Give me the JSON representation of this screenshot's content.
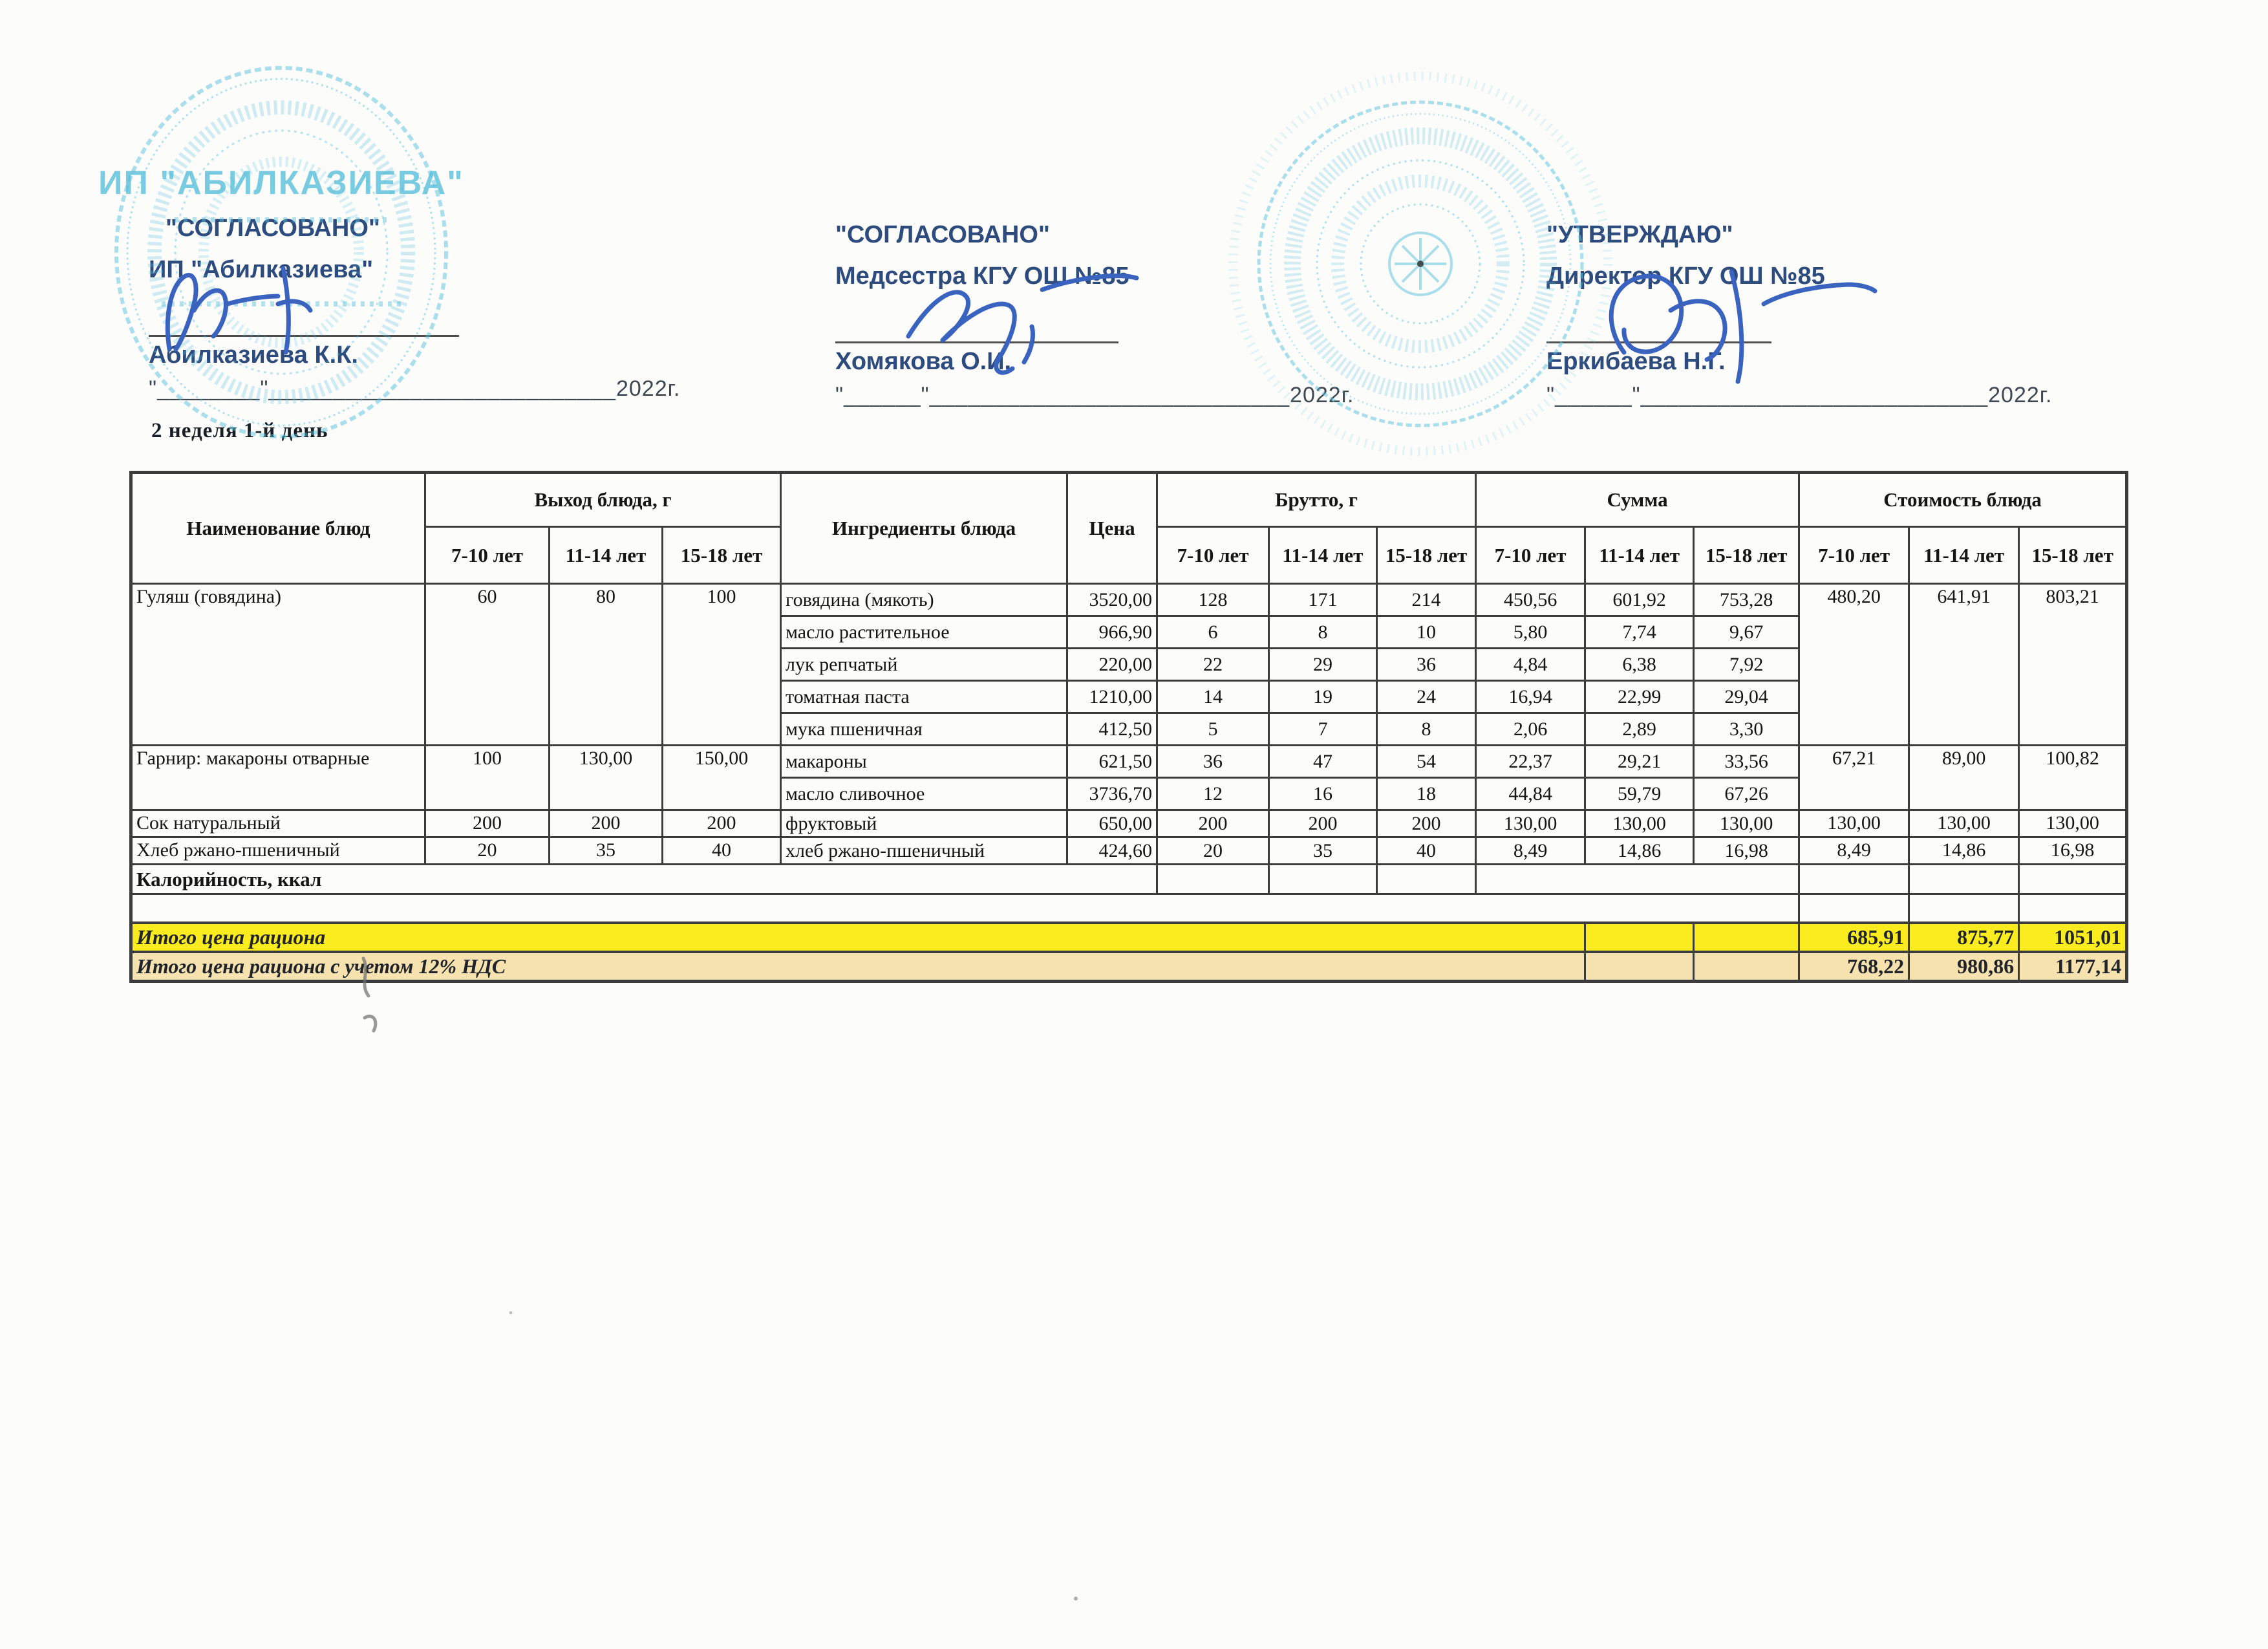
{
  "approvals": [
    {
      "title": "\"СОГЛАСОВАНО\"",
      "subtitle": "ИП \"Абилказиева\"",
      "name": "Абилказиева К.К.",
      "date_line": "\"________\"___________________________2022г."
    },
    {
      "title": "\"СОГЛАСОВАНО\"",
      "subtitle": "Медсестра КГУ ОШ №85",
      "name": "Хомякова О.И.",
      "date_line": "\"______\"____________________________2022г."
    },
    {
      "title": "\"УТВЕРЖДАЮ\"",
      "subtitle": "Директор КГУ ОШ №85",
      "name": "Еркибаева Н.Г.",
      "date_line": "\"______\"___________________________2022г."
    }
  ],
  "week_label": "2 неделя 1-й день",
  "stamps": {
    "left_text": "ИП \"АБИЛКАЗИЕВА\""
  },
  "table": {
    "headers": {
      "dish": "Наименование блюд",
      "output": "Выход блюда, г",
      "ingredients": "Ингредиенты блюда",
      "price": "Цена",
      "brutto": "Брутто, г",
      "sum": "Сумма",
      "cost": "Стоимость блюда",
      "ages": [
        "7-10 лет",
        "11-14 лет",
        "15-18 лет"
      ]
    },
    "dishes": [
      {
        "name": "Гуляш (говядина)",
        "output": [
          "60",
          "80",
          "100"
        ],
        "cost": [
          "480,20",
          "641,91",
          "803,21"
        ],
        "ingredients": [
          {
            "name": "говядина (мякоть)",
            "price": "3520,00",
            "brutto": [
              "128",
              "171",
              "214"
            ],
            "sum": [
              "450,56",
              "601,92",
              "753,28"
            ]
          },
          {
            "name": "масло растительное",
            "price": "966,90",
            "brutto": [
              "6",
              "8",
              "10"
            ],
            "sum": [
              "5,80",
              "7,74",
              "9,67"
            ]
          },
          {
            "name": "лук репчатый",
            "price": "220,00",
            "brutto": [
              "22",
              "29",
              "36"
            ],
            "sum": [
              "4,84",
              "6,38",
              "7,92"
            ]
          },
          {
            "name": "томатная паста",
            "price": "1210,00",
            "brutto": [
              "14",
              "19",
              "24"
            ],
            "sum": [
              "16,94",
              "22,99",
              "29,04"
            ]
          },
          {
            "name": "мука пшеничная",
            "price": "412,50",
            "brutto": [
              "5",
              "7",
              "8"
            ],
            "sum": [
              "2,06",
              "2,89",
              "3,30"
            ]
          }
        ]
      },
      {
        "name": "Гарнир: макароны отварные",
        "output": [
          "100",
          "130,00",
          "150,00"
        ],
        "cost": [
          "67,21",
          "89,00",
          "100,82"
        ],
        "ingredients": [
          {
            "name": "макароны",
            "price": "621,50",
            "brutto": [
              "36",
              "47",
              "54"
            ],
            "sum": [
              "22,37",
              "29,21",
              "33,56"
            ]
          },
          {
            "name": "масло сливочное",
            "price": "3736,70",
            "brutto": [
              "12",
              "16",
              "18"
            ],
            "sum": [
              "44,84",
              "59,79",
              "67,26"
            ]
          }
        ]
      },
      {
        "name": "Сок натуральный",
        "output": [
          "200",
          "200",
          "200"
        ],
        "cost": [
          "130,00",
          "130,00",
          "130,00"
        ],
        "ingredients": [
          {
            "name": "фруктовый",
            "price": "650,00",
            "brutto": [
              "200",
              "200",
              "200"
            ],
            "sum": [
              "130,00",
              "130,00",
              "130,00"
            ]
          }
        ]
      },
      {
        "name": "Хлеб ржано-пшеничный",
        "output": [
          "20",
          "35",
          "40"
        ],
        "cost": [
          "8,49",
          "14,86",
          "16,98"
        ],
        "ingredients": [
          {
            "name": "хлеб ржано-пшеничный",
            "price": "424,60",
            "brutto": [
              "20",
              "35",
              "40"
            ],
            "sum": [
              "8,49",
              "14,86",
              "16,98"
            ]
          }
        ]
      }
    ],
    "calories_label": "Калорийность, ккал",
    "totals": [
      {
        "label": "Итого цена рациона",
        "values": [
          "685,91",
          "875,77",
          "1051,01"
        ]
      },
      {
        "label": "Итого цена рациона с учетом 12% НДС",
        "values": [
          "768,22",
          "980,86",
          "1177,14"
        ]
      }
    ]
  },
  "colors": {
    "highlight_bright": "#fbec1f",
    "highlight_pale": "#f5e2ae",
    "stamp": "#58bfda",
    "signature": "#3a63c0",
    "header_text": "#2e4b7e",
    "table_line": "#3c3c3c"
  }
}
